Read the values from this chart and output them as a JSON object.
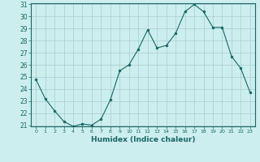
{
  "x": [
    0,
    1,
    2,
    3,
    4,
    5,
    6,
    7,
    8,
    9,
    10,
    11,
    12,
    13,
    14,
    15,
    16,
    17,
    18,
    19,
    20,
    21,
    22,
    23
  ],
  "y": [
    24.8,
    23.2,
    22.2,
    21.3,
    20.9,
    21.1,
    21.0,
    21.5,
    23.1,
    25.5,
    26.0,
    27.3,
    28.9,
    27.4,
    27.6,
    28.6,
    30.4,
    31.0,
    30.4,
    29.1,
    29.1,
    26.7,
    25.7,
    23.7
  ],
  "xlabel": "Humidex (Indice chaleur)",
  "bg_color": "#cceeee",
  "line_color": "#1a6666",
  "marker_color": "#1a6666",
  "grid_color": "#aacccc",
  "ylim_min": 21,
  "ylim_max": 31,
  "xlim_min": -0.5,
  "xlim_max": 23.5,
  "yticks": [
    21,
    22,
    23,
    24,
    25,
    26,
    27,
    28,
    29,
    30,
    31
  ]
}
